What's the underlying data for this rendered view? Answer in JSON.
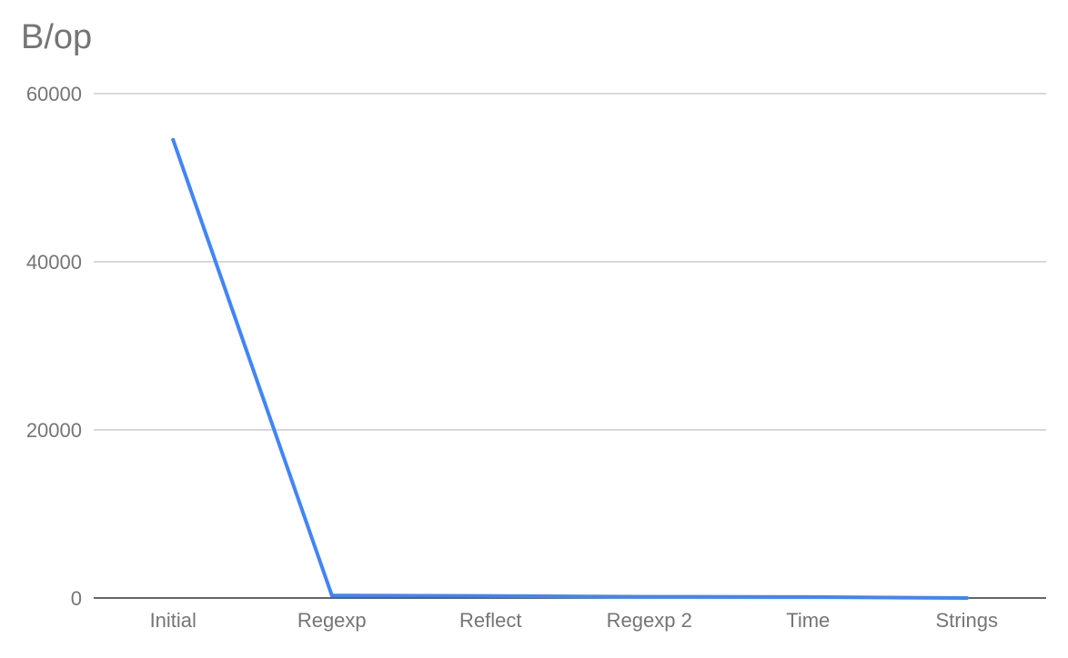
{
  "chart_data": {
    "type": "line",
    "title": "B/op",
    "xlabel": "",
    "ylabel": "",
    "categories": [
      "Initial",
      "Regexp",
      "Reflect",
      "Regexp 2",
      "Time",
      "Strings"
    ],
    "series": [
      {
        "values": [
          54500,
          300,
          250,
          150,
          120,
          0
        ]
      }
    ],
    "ylim": [
      0,
      60000
    ],
    "yticks": [
      0,
      20000,
      40000,
      60000
    ],
    "grid": true,
    "legend": "none",
    "colors": {
      "series": "#4285f4",
      "grid": "#cccccc",
      "baseline": "#333333",
      "text": "#757575"
    }
  }
}
